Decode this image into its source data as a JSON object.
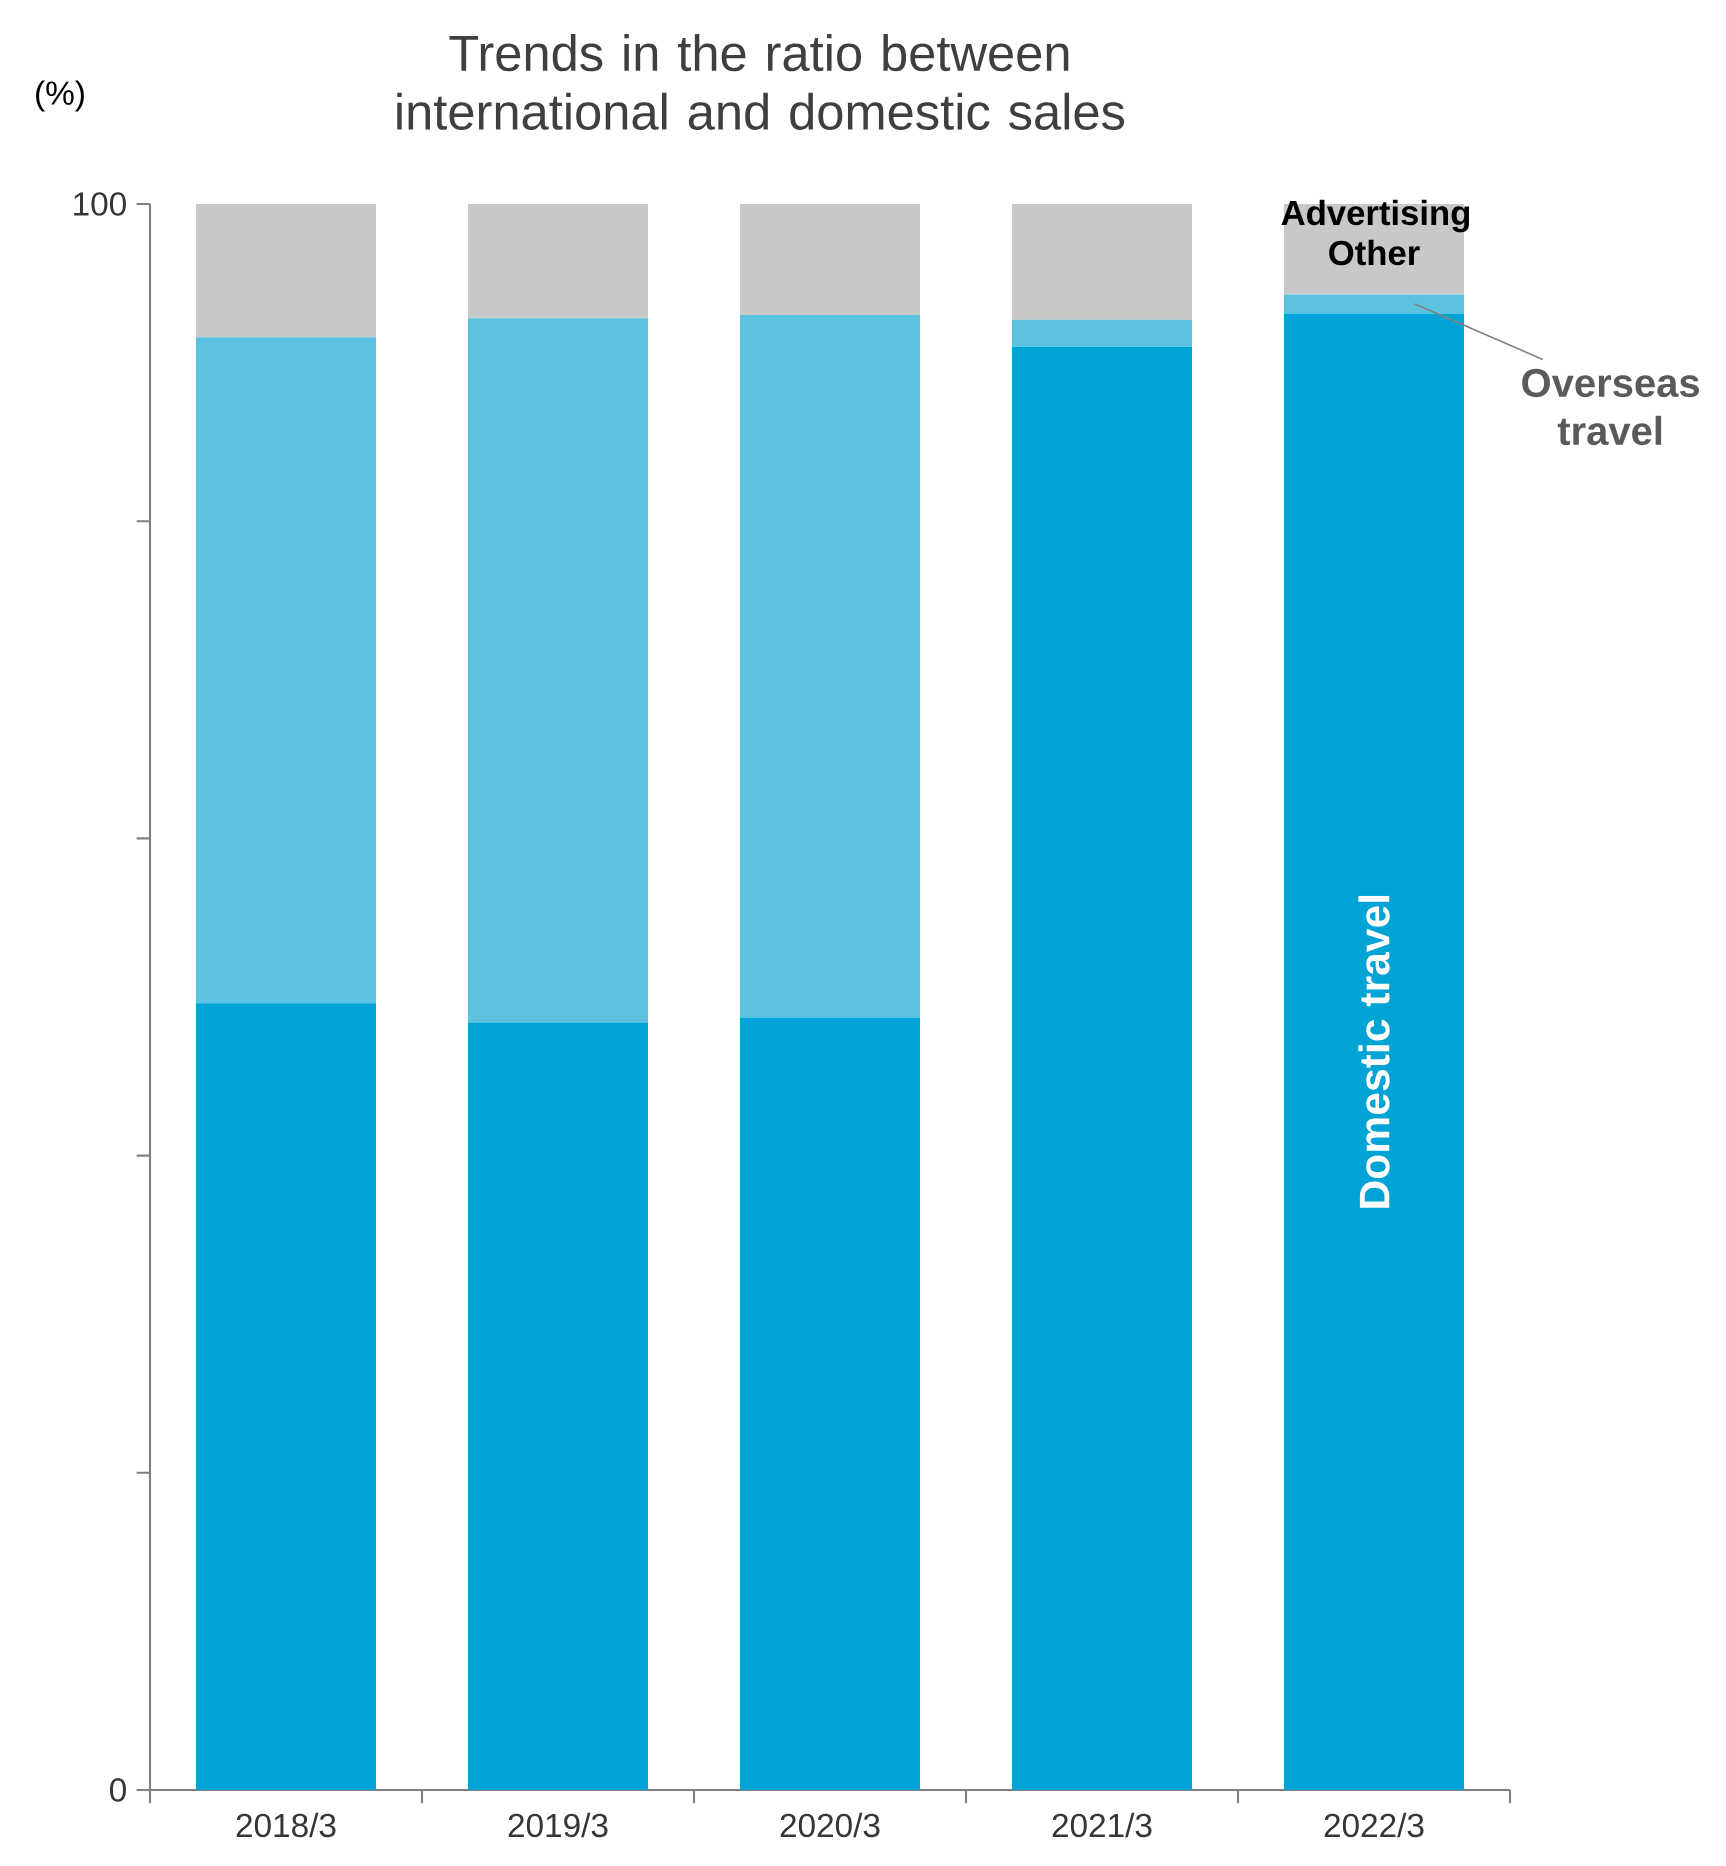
{
  "chart_data": {
    "type": "bar",
    "stacked": true,
    "title": "Trends in the ratio between international and domestic sales",
    "ylabel": "(%)",
    "categories": [
      "2018/3",
      "2019/3",
      "2020/3",
      "2021/3",
      "2022/3"
    ],
    "series": [
      {
        "name": "Domestic travel",
        "color": "#00a3d5",
        "values": [
          49.6,
          48.4,
          48.7,
          91.0,
          93.1
        ]
      },
      {
        "name": "Overseas travel",
        "color": "#5bc2e0",
        "values": [
          42.0,
          44.4,
          44.3,
          1.7,
          1.2
        ]
      },
      {
        "name": "Advertising Other",
        "color": "#c8c8c8",
        "values": [
          8.4,
          7.2,
          7.0,
          7.3,
          5.7
        ]
      }
    ],
    "ylim": [
      0,
      100
    ],
    "yticks": [
      0,
      {
        "value": 20,
        "label": null
      },
      {
        "value": 40,
        "label": null
      },
      {
        "value": 60,
        "label": null
      },
      {
        "value": 80,
        "label": null
      },
      100
    ],
    "grid": false
  }
}
